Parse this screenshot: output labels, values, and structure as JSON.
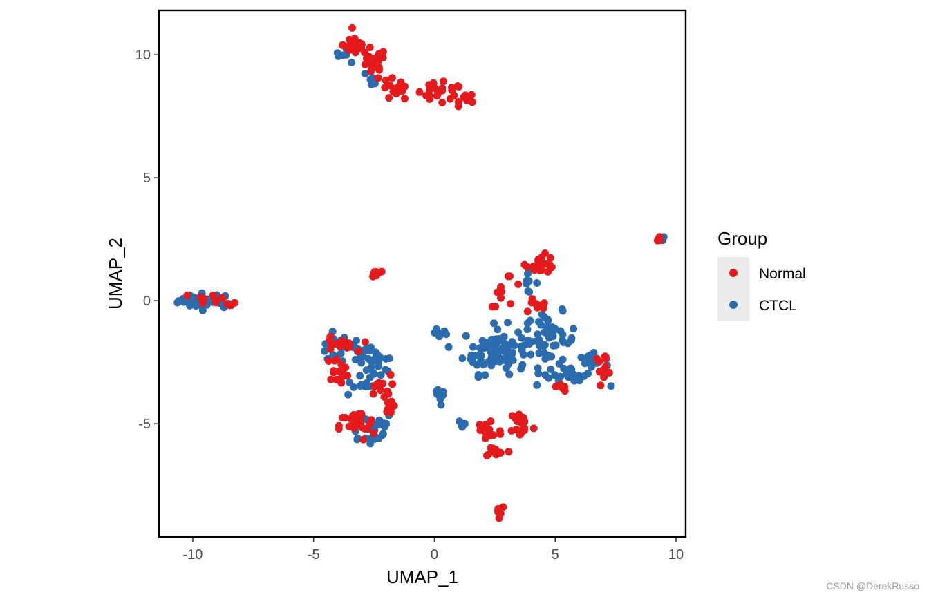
{
  "chart_data": {
    "type": "scatter",
    "title": "",
    "xlabel": "UMAP_1",
    "ylabel": "UMAP_2",
    "xlim": [
      -11.4,
      10.4
    ],
    "ylim": [
      -9.6,
      11.8
    ],
    "x_ticks": [
      -10,
      -5,
      0,
      5,
      10
    ],
    "y_ticks": [
      -5,
      0,
      5,
      10
    ],
    "grid": false,
    "legend": {
      "title": "Group",
      "position": "right"
    },
    "series": [
      {
        "name": "Normal",
        "color": "#E41A1C",
        "clusters": [
          {
            "cx": -3.3,
            "cy": 10.4,
            "rx": 0.4,
            "ry": 0.35,
            "n": 28
          },
          {
            "cx": -2.6,
            "cy": 9.6,
            "rx": 0.5,
            "ry": 0.55,
            "n": 22
          },
          {
            "cx": -1.6,
            "cy": 8.6,
            "rx": 0.5,
            "ry": 0.4,
            "n": 14
          },
          {
            "cx": 0.2,
            "cy": 8.4,
            "rx": 0.9,
            "ry": 0.35,
            "n": 24
          },
          {
            "cx": 1.4,
            "cy": 8.2,
            "rx": 0.3,
            "ry": 0.2,
            "n": 8
          },
          {
            "cx": 9.3,
            "cy": 2.5,
            "rx": 0.12,
            "ry": 0.12,
            "n": 6
          },
          {
            "cx": -2.4,
            "cy": 1.1,
            "rx": 0.15,
            "ry": 0.2,
            "n": 8
          },
          {
            "cx": -9.2,
            "cy": 0.1,
            "rx": 0.6,
            "ry": 0.2,
            "n": 8
          },
          {
            "cx": -8.4,
            "cy": -0.2,
            "rx": 0.2,
            "ry": 0.1,
            "n": 4
          },
          {
            "cx": 4.4,
            "cy": 1.5,
            "rx": 0.5,
            "ry": 0.3,
            "n": 22
          },
          {
            "cx": 3.0,
            "cy": 0.5,
            "rx": 0.6,
            "ry": 0.6,
            "n": 10
          },
          {
            "cx": 4.2,
            "cy": -0.2,
            "rx": 0.4,
            "ry": 0.3,
            "n": 10
          },
          {
            "cx": 7.0,
            "cy": -2.6,
            "rx": 0.35,
            "ry": 0.35,
            "n": 12
          },
          {
            "cx": 5.3,
            "cy": -3.5,
            "rx": 0.2,
            "ry": 0.15,
            "n": 5
          },
          {
            "cx": -4.0,
            "cy": -1.8,
            "rx": 0.6,
            "ry": 0.25,
            "n": 18
          },
          {
            "cx": -4.0,
            "cy": -2.8,
            "rx": 0.4,
            "ry": 0.4,
            "n": 14
          },
          {
            "cx": -2.3,
            "cy": -3.5,
            "rx": 0.4,
            "ry": 0.4,
            "n": 10
          },
          {
            "cx": -1.9,
            "cy": -4.2,
            "rx": 0.3,
            "ry": 0.5,
            "n": 10
          },
          {
            "cx": -3.2,
            "cy": -5.1,
            "rx": 0.6,
            "ry": 0.5,
            "n": 30
          },
          {
            "cx": 2.2,
            "cy": -5.3,
            "rx": 0.5,
            "ry": 0.5,
            "n": 16
          },
          {
            "cx": 3.6,
            "cy": -5.0,
            "rx": 0.4,
            "ry": 0.5,
            "n": 18
          },
          {
            "cx": 2.6,
            "cy": -6.1,
            "rx": 0.5,
            "ry": 0.2,
            "n": 10
          },
          {
            "cx": 2.7,
            "cy": -8.5,
            "rx": 0.2,
            "ry": 0.2,
            "n": 7
          }
        ]
      },
      {
        "name": "CTCL",
        "color": "#2B6CAF",
        "clusters": [
          {
            "cx": -9.4,
            "cy": 0.0,
            "rx": 1.0,
            "ry": 0.25,
            "n": 40
          },
          {
            "cx": -3.6,
            "cy": 10.1,
            "rx": 0.4,
            "ry": 0.35,
            "n": 10
          },
          {
            "cx": -2.5,
            "cy": 9.0,
            "rx": 0.3,
            "ry": 0.3,
            "n": 5
          },
          {
            "cx": 9.4,
            "cy": 2.5,
            "rx": 0.1,
            "ry": 0.1,
            "n": 2
          },
          {
            "cx": -3.8,
            "cy": -2.0,
            "rx": 1.1,
            "ry": 0.5,
            "n": 30
          },
          {
            "cx": -2.4,
            "cy": -2.6,
            "rx": 0.6,
            "ry": 0.5,
            "n": 25
          },
          {
            "cx": -3.1,
            "cy": -3.4,
            "rx": 0.5,
            "ry": 0.5,
            "n": 12
          },
          {
            "cx": -2.7,
            "cy": -5.2,
            "rx": 0.9,
            "ry": 0.6,
            "n": 25
          },
          {
            "cx": 0.3,
            "cy": -3.9,
            "rx": 0.35,
            "ry": 0.45,
            "n": 9
          },
          {
            "cx": 0.4,
            "cy": -1.2,
            "rx": 0.3,
            "ry": 0.2,
            "n": 5
          },
          {
            "cx": 2.5,
            "cy": -2.0,
            "rx": 1.1,
            "ry": 0.8,
            "n": 90
          },
          {
            "cx": 4.8,
            "cy": -1.6,
            "rx": 0.9,
            "ry": 0.9,
            "n": 50
          },
          {
            "cx": 3.8,
            "cy": 0.8,
            "rx": 0.4,
            "ry": 0.4,
            "n": 10
          },
          {
            "cx": 6.5,
            "cy": -2.7,
            "rx": 0.6,
            "ry": 0.5,
            "n": 20
          },
          {
            "cx": 5.3,
            "cy": -3.0,
            "rx": 0.6,
            "ry": 0.4,
            "n": 12
          },
          {
            "cx": 1.2,
            "cy": -5.0,
            "rx": 0.2,
            "ry": 0.2,
            "n": 4
          }
        ]
      }
    ]
  },
  "watermark": "CSDN @DerekRusso"
}
